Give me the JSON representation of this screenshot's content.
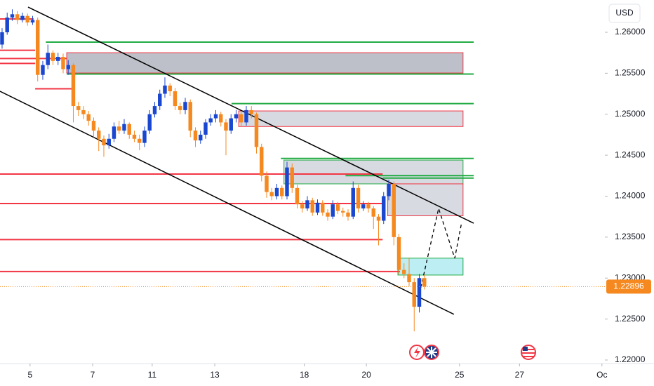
{
  "chart_data": {
    "type": "candlestick",
    "currency": "USD",
    "up_color": "#1a47cf",
    "down_color": "#f5891f",
    "xlim": [
      -0.41,
      118.48
    ],
    "ylim": [
      1.21957,
      1.26394
    ],
    "xticks": [
      {
        "value": 5.5,
        "label": "5"
      },
      {
        "value": 17.8,
        "label": "7"
      },
      {
        "value": 29.5,
        "label": "11"
      },
      {
        "value": 41.8,
        "label": "13"
      },
      {
        "value": 59.4,
        "label": "18"
      },
      {
        "value": 71.6,
        "label": "20"
      },
      {
        "value": 89.9,
        "label": "25"
      },
      {
        "value": 101.7,
        "label": "27"
      },
      {
        "value": 117.9,
        "label": "Oc"
      }
    ],
    "yticks": [
      {
        "value": 1.26,
        "label": "1.26000"
      },
      {
        "value": 1.255,
        "label": "1.25500"
      },
      {
        "value": 1.25,
        "label": "1.25000"
      },
      {
        "value": 1.245,
        "label": "1.24500"
      },
      {
        "value": 1.24,
        "label": "1.24000"
      },
      {
        "value": 1.235,
        "label": "1.23500"
      },
      {
        "value": 1.23,
        "label": "1.23000"
      },
      {
        "value": 1.225,
        "label": "1.22500"
      },
      {
        "value": 1.22,
        "label": "1.22000"
      }
    ],
    "last_price": 1.22896,
    "candles": [
      {
        "x": 0,
        "o": 1.2585,
        "h": 1.2605,
        "l": 1.258,
        "c": 1.26
      },
      {
        "x": 1,
        "o": 1.26,
        "h": 1.2624,
        "l": 1.2597,
        "c": 1.2618
      },
      {
        "x": 2,
        "o": 1.2618,
        "h": 1.2628,
        "l": 1.2614,
        "c": 1.2622
      },
      {
        "x": 3,
        "o": 1.2622,
        "h": 1.2626,
        "l": 1.261,
        "c": 1.2615
      },
      {
        "x": 4,
        "o": 1.2615,
        "h": 1.2624,
        "l": 1.2612,
        "c": 1.262
      },
      {
        "x": 5,
        "o": 1.262,
        "h": 1.2623,
        "l": 1.2608,
        "c": 1.2612
      },
      {
        "x": 6,
        "o": 1.2612,
        "h": 1.262,
        "l": 1.2609,
        "c": 1.2615
      },
      {
        "x": 7,
        "o": 1.2615,
        "h": 1.2618,
        "l": 1.254,
        "c": 1.2548
      },
      {
        "x": 8,
        "o": 1.2548,
        "h": 1.2565,
        "l": 1.2542,
        "c": 1.256
      },
      {
        "x": 9,
        "o": 1.256,
        "h": 1.2585,
        "l": 1.2555,
        "c": 1.2575
      },
      {
        "x": 10,
        "o": 1.2575,
        "h": 1.2578,
        "l": 1.256,
        "c": 1.2565
      },
      {
        "x": 11,
        "o": 1.2565,
        "h": 1.2575,
        "l": 1.256,
        "c": 1.257
      },
      {
        "x": 12,
        "o": 1.257,
        "h": 1.2574,
        "l": 1.255,
        "c": 1.2555
      },
      {
        "x": 13,
        "o": 1.2555,
        "h": 1.2566,
        "l": 1.2548,
        "c": 1.256
      },
      {
        "x": 14,
        "o": 1.256,
        "h": 1.2562,
        "l": 1.249,
        "c": 1.251
      },
      {
        "x": 15,
        "o": 1.251,
        "h": 1.2515,
        "l": 1.2498,
        "c": 1.2505
      },
      {
        "x": 16,
        "o": 1.2505,
        "h": 1.251,
        "l": 1.2494,
        "c": 1.25
      },
      {
        "x": 17,
        "o": 1.25,
        "h": 1.2504,
        "l": 1.2486,
        "c": 1.2492
      },
      {
        "x": 18,
        "o": 1.2492,
        "h": 1.2496,
        "l": 1.2472,
        "c": 1.248
      },
      {
        "x": 19,
        "o": 1.248,
        "h": 1.2484,
        "l": 1.2455,
        "c": 1.247
      },
      {
        "x": 20,
        "o": 1.247,
        "h": 1.2474,
        "l": 1.2448,
        "c": 1.2462
      },
      {
        "x": 21,
        "o": 1.2462,
        "h": 1.2476,
        "l": 1.2458,
        "c": 1.247
      },
      {
        "x": 22,
        "o": 1.247,
        "h": 1.249,
        "l": 1.2466,
        "c": 1.2485
      },
      {
        "x": 23,
        "o": 1.2485,
        "h": 1.2492,
        "l": 1.2476,
        "c": 1.248
      },
      {
        "x": 24,
        "o": 1.248,
        "h": 1.2494,
        "l": 1.2476,
        "c": 1.2488
      },
      {
        "x": 25,
        "o": 1.2488,
        "h": 1.249,
        "l": 1.247,
        "c": 1.2475
      },
      {
        "x": 26,
        "o": 1.2475,
        "h": 1.248,
        "l": 1.2466,
        "c": 1.247
      },
      {
        "x": 27,
        "o": 1.247,
        "h": 1.2475,
        "l": 1.2456,
        "c": 1.2465
      },
      {
        "x": 28,
        "o": 1.2465,
        "h": 1.2485,
        "l": 1.246,
        "c": 1.248
      },
      {
        "x": 29,
        "o": 1.248,
        "h": 1.2505,
        "l": 1.2476,
        "c": 1.25
      },
      {
        "x": 30,
        "o": 1.25,
        "h": 1.2515,
        "l": 1.2496,
        "c": 1.251
      },
      {
        "x": 31,
        "o": 1.251,
        "h": 1.253,
        "l": 1.2505,
        "c": 1.2525
      },
      {
        "x": 32,
        "o": 1.2525,
        "h": 1.2545,
        "l": 1.252,
        "c": 1.2535
      },
      {
        "x": 33,
        "o": 1.2535,
        "h": 1.2538,
        "l": 1.2522,
        "c": 1.2528
      },
      {
        "x": 34,
        "o": 1.2528,
        "h": 1.2532,
        "l": 1.2505,
        "c": 1.251
      },
      {
        "x": 35,
        "o": 1.251,
        "h": 1.2514,
        "l": 1.25,
        "c": 1.2505
      },
      {
        "x": 36,
        "o": 1.2505,
        "h": 1.252,
        "l": 1.25,
        "c": 1.2515
      },
      {
        "x": 37,
        "o": 1.2515,
        "h": 1.2518,
        "l": 1.2472,
        "c": 1.248
      },
      {
        "x": 38,
        "o": 1.248,
        "h": 1.2484,
        "l": 1.246,
        "c": 1.2468
      },
      {
        "x": 39,
        "o": 1.2468,
        "h": 1.248,
        "l": 1.2464,
        "c": 1.2475
      },
      {
        "x": 40,
        "o": 1.2475,
        "h": 1.2494,
        "l": 1.247,
        "c": 1.249
      },
      {
        "x": 41,
        "o": 1.249,
        "h": 1.25,
        "l": 1.2486,
        "c": 1.2495
      },
      {
        "x": 42,
        "o": 1.2495,
        "h": 1.2505,
        "l": 1.249,
        "c": 1.25
      },
      {
        "x": 43,
        "o": 1.25,
        "h": 1.2503,
        "l": 1.2485,
        "c": 1.249
      },
      {
        "x": 44,
        "o": 1.249,
        "h": 1.2494,
        "l": 1.245,
        "c": 1.248
      },
      {
        "x": 45,
        "o": 1.248,
        "h": 1.25,
        "l": 1.2476,
        "c": 1.2495
      },
      {
        "x": 46,
        "o": 1.2495,
        "h": 1.2505,
        "l": 1.249,
        "c": 1.25
      },
      {
        "x": 47,
        "o": 1.25,
        "h": 1.2503,
        "l": 1.2485,
        "c": 1.249
      },
      {
        "x": 48,
        "o": 1.249,
        "h": 1.251,
        "l": 1.2486,
        "c": 1.2505
      },
      {
        "x": 49,
        "o": 1.2505,
        "h": 1.251,
        "l": 1.2495,
        "c": 1.25
      },
      {
        "x": 50,
        "o": 1.25,
        "h": 1.2502,
        "l": 1.2452,
        "c": 1.246
      },
      {
        "x": 51,
        "o": 1.246,
        "h": 1.2464,
        "l": 1.2418,
        "c": 1.2425
      },
      {
        "x": 52,
        "o": 1.2425,
        "h": 1.243,
        "l": 1.2398,
        "c": 1.2405
      },
      {
        "x": 53,
        "o": 1.2405,
        "h": 1.241,
        "l": 1.2395,
        "c": 1.24
      },
      {
        "x": 54,
        "o": 1.24,
        "h": 1.2415,
        "l": 1.2396,
        "c": 1.241
      },
      {
        "x": 55,
        "o": 1.241,
        "h": 1.2413,
        "l": 1.2396,
        "c": 1.24
      },
      {
        "x": 56,
        "o": 1.24,
        "h": 1.2442,
        "l": 1.2396,
        "c": 1.2435
      },
      {
        "x": 57,
        "o": 1.2435,
        "h": 1.244,
        "l": 1.2404,
        "c": 1.241
      },
      {
        "x": 58,
        "o": 1.241,
        "h": 1.2414,
        "l": 1.2385,
        "c": 1.239
      },
      {
        "x": 59,
        "o": 1.239,
        "h": 1.2394,
        "l": 1.238,
        "c": 1.2385
      },
      {
        "x": 60,
        "o": 1.2385,
        "h": 1.24,
        "l": 1.2382,
        "c": 1.2395
      },
      {
        "x": 61,
        "o": 1.2395,
        "h": 1.2398,
        "l": 1.2376,
        "c": 1.238
      },
      {
        "x": 62,
        "o": 1.238,
        "h": 1.2396,
        "l": 1.2377,
        "c": 1.2392
      },
      {
        "x": 63,
        "o": 1.2392,
        "h": 1.2395,
        "l": 1.2376,
        "c": 1.238
      },
      {
        "x": 64,
        "o": 1.238,
        "h": 1.2384,
        "l": 1.237,
        "c": 1.2375
      },
      {
        "x": 65,
        "o": 1.2375,
        "h": 1.2395,
        "l": 1.2372,
        "c": 1.239
      },
      {
        "x": 66,
        "o": 1.239,
        "h": 1.2393,
        "l": 1.2378,
        "c": 1.2382
      },
      {
        "x": 67,
        "o": 1.2382,
        "h": 1.2386,
        "l": 1.2375,
        "c": 1.238
      },
      {
        "x": 68,
        "o": 1.238,
        "h": 1.2384,
        "l": 1.237,
        "c": 1.2375
      },
      {
        "x": 69,
        "o": 1.2375,
        "h": 1.2418,
        "l": 1.2372,
        "c": 1.241
      },
      {
        "x": 70,
        "o": 1.241,
        "h": 1.2414,
        "l": 1.238,
        "c": 1.2385
      },
      {
        "x": 71,
        "o": 1.2385,
        "h": 1.2394,
        "l": 1.2382,
        "c": 1.239
      },
      {
        "x": 72,
        "o": 1.239,
        "h": 1.2393,
        "l": 1.238,
        "c": 1.2385
      },
      {
        "x": 73,
        "o": 1.2385,
        "h": 1.2388,
        "l": 1.236,
        "c": 1.2375
      },
      {
        "x": 74,
        "o": 1.2375,
        "h": 1.2378,
        "l": 1.234,
        "c": 1.237
      },
      {
        "x": 75,
        "o": 1.237,
        "h": 1.2405,
        "l": 1.2366,
        "c": 1.24
      },
      {
        "x": 76,
        "o": 1.24,
        "h": 1.242,
        "l": 1.2395,
        "c": 1.2415
      },
      {
        "x": 77,
        "o": 1.2415,
        "h": 1.2418,
        "l": 1.234,
        "c": 1.235
      },
      {
        "x": 78,
        "o": 1.235,
        "h": 1.2354,
        "l": 1.2304,
        "c": 1.231
      },
      {
        "x": 79,
        "o": 1.231,
        "h": 1.2318,
        "l": 1.23,
        "c": 1.2305
      },
      {
        "x": 80,
        "o": 1.2305,
        "h": 1.2325,
        "l": 1.229,
        "c": 1.2295
      },
      {
        "x": 81,
        "o": 1.2295,
        "h": 1.23,
        "l": 1.2235,
        "c": 1.2265
      },
      {
        "x": 82,
        "o": 1.2265,
        "h": 1.2305,
        "l": 1.2258,
        "c": 1.23
      },
      {
        "x": 83,
        "o": 1.23,
        "h": 1.2304,
        "l": 1.2286,
        "c": 1.22896
      }
    ],
    "levels": [
      {
        "price": 1.26163,
        "from": -0.41,
        "to": 6.2,
        "color": "#f23645"
      },
      {
        "price": 1.2578,
        "from": -0.41,
        "to": 6.5,
        "color": "#f23645"
      },
      {
        "price": 1.2568,
        "from": -0.41,
        "to": 12.7,
        "color": "#f23645"
      },
      {
        "price": 1.2562,
        "from": -0.41,
        "to": 6.5,
        "color": "#f23645"
      },
      {
        "price": 1.2531,
        "from": 6.5,
        "to": 14.1,
        "color": "#f23645"
      },
      {
        "price": 1.2427,
        "from": -0.41,
        "to": 74.8,
        "color": "#f23645"
      },
      {
        "price": 1.2391,
        "from": -0.41,
        "to": 74.8,
        "color": "#f23645"
      },
      {
        "price": 1.2347,
        "from": -0.41,
        "to": 74.8,
        "color": "#f23645"
      },
      {
        "price": 1.2308,
        "from": -0.41,
        "to": 78.2,
        "color": "#f23645"
      },
      {
        "price": 1.2588,
        "from": 8.6,
        "to": 92.7,
        "color": "#22ab44"
      },
      {
        "price": 1.2549,
        "from": 12.7,
        "to": 92.7,
        "color": "#22ab44"
      },
      {
        "price": 1.2513,
        "from": 45.1,
        "to": 92.7,
        "color": "#22ab44"
      },
      {
        "price": 1.2446,
        "from": 54.8,
        "to": 92.7,
        "color": "#22ab44"
      },
      {
        "price": 1.2425,
        "from": 67.5,
        "to": 92.7,
        "color": "#22ab44"
      },
      {
        "price": 1.2422,
        "from": 74.8,
        "to": 92.7,
        "color": "#22ab44"
      }
    ],
    "zones": [
      {
        "top": 1.25751,
        "bottom": 1.25503,
        "from": 12.7,
        "to": 90.6,
        "fill": "#b2b5be",
        "stroke": "#f23645"
      },
      {
        "top": 1.2504,
        "bottom": 1.2485,
        "from": 46.5,
        "to": 90.6,
        "fill": "#d1d4dc",
        "stroke": "#f23645"
      },
      {
        "top": 1.2444,
        "bottom": 1.2415,
        "from": 55.4,
        "to": 90.6,
        "fill": "#d1d4dc",
        "stroke": "#22ab44"
      },
      {
        "top": 1.2415,
        "bottom": 1.2376,
        "from": 75.8,
        "to": 90.6,
        "fill": "#d1d4dc",
        "stroke": "#f23645"
      },
      {
        "top": 1.23243,
        "bottom": 1.23037,
        "from": 77.8,
        "to": 90.6,
        "fill": "#b2ebf2",
        "stroke": "#22ab44"
      }
    ],
    "trendlines": [
      {
        "x": [
          5.1,
          92.7
        ],
        "y": [
          1.26308,
          1.2367
        ],
        "color": "#000000",
        "dash": false
      },
      {
        "x": [
          -0.41,
          88.8
        ],
        "y": [
          1.2528,
          1.22558
        ],
        "color": "#000000",
        "dash": false
      },
      {
        "x": [
          82.3,
          85.8,
          88.97,
          90.3
        ],
        "y": [
          1.22883,
          1.2385,
          1.23242,
          1.2367
        ],
        "color": "#000000",
        "dash": true
      }
    ]
  }
}
